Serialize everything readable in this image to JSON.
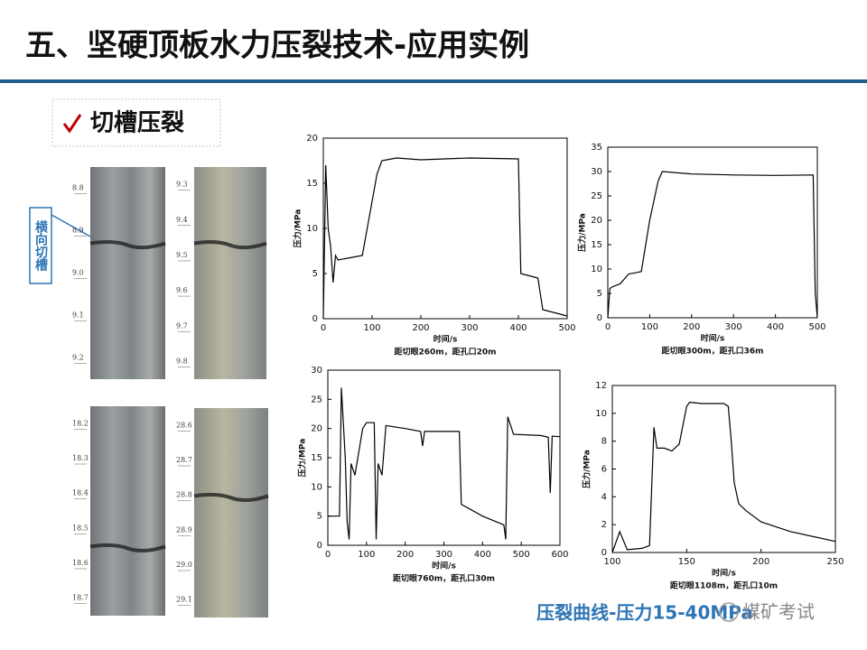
{
  "header": {
    "title": "五、坚硬顶板水力压裂技术-应用实例"
  },
  "callout": {
    "text": "切槽压裂"
  },
  "slot_label": {
    "text": "横向切槽"
  },
  "core_photos": [
    {
      "depths": [
        "8.8",
        "8.9",
        "9.0",
        "9.1",
        "9.2"
      ]
    },
    {
      "depths": [
        "9.3",
        "9.4",
        "9.5",
        "9.6",
        "9.7",
        "9.8"
      ]
    },
    {
      "depths": [
        "18.2",
        "18.3",
        "18.4",
        "18.5",
        "18.6",
        "18.7"
      ]
    },
    {
      "depths": [
        "28.6",
        "28.7",
        "28.8",
        "28.9",
        "29.0",
        "29.1"
      ]
    }
  ],
  "chart_data": [
    {
      "type": "line",
      "subtitle": "距切眼260m，距孔口20m",
      "x_label": "时间/s",
      "y_label": "压力/MPa",
      "xlim": [
        0,
        500
      ],
      "xticks": [
        0,
        100,
        200,
        300,
        400,
        500
      ],
      "ylim": [
        0,
        20
      ],
      "yticks": [
        0,
        5,
        10,
        15,
        20
      ],
      "series": [
        {
          "color": "#000000",
          "x": [
            0,
            5,
            10,
            15,
            20,
            25,
            30,
            50,
            80,
            90,
            100,
            110,
            120,
            150,
            200,
            300,
            400,
            405,
            440,
            450,
            500
          ],
          "values": [
            0,
            17,
            10,
            8,
            4,
            7,
            6.5,
            6.7,
            7,
            10,
            13,
            16,
            17.5,
            17.8,
            17.6,
            17.8,
            17.7,
            5,
            4.5,
            1,
            0.3
          ]
        }
      ]
    },
    {
      "type": "line",
      "subtitle": "距切眼300m，距孔口36m",
      "x_label": "时间/s",
      "y_label": "压力/MPa",
      "xlim": [
        0,
        500
      ],
      "xticks": [
        0,
        100,
        200,
        300,
        400,
        500
      ],
      "ylim": [
        0,
        35
      ],
      "yticks": [
        0,
        5,
        10,
        15,
        20,
        25,
        30,
        35
      ],
      "series": [
        {
          "color": "#000000",
          "x": [
            0,
            5,
            10,
            30,
            50,
            70,
            80,
            100,
            120,
            130,
            200,
            300,
            400,
            490,
            495,
            500
          ],
          "values": [
            0,
            6,
            6.3,
            7,
            9,
            9.3,
            9.5,
            20,
            28,
            30,
            29.5,
            29.3,
            29.2,
            29.3,
            5,
            0
          ]
        }
      ]
    },
    {
      "type": "line",
      "subtitle": "距切眼760m，距孔口30m",
      "x_label": "时间/s",
      "y_label": "压力/MPa",
      "xlim": [
        0,
        600
      ],
      "xticks": [
        0,
        100,
        200,
        300,
        400,
        500,
        600
      ],
      "ylim": [
        0,
        30
      ],
      "yticks": [
        0,
        5,
        10,
        15,
        20,
        25,
        30
      ],
      "series": [
        {
          "color": "#000000",
          "x": [
            0,
            30,
            35,
            45,
            50,
            55,
            60,
            70,
            90,
            100,
            120,
            125,
            130,
            140,
            150,
            200,
            240,
            245,
            250,
            340,
            345,
            400,
            455,
            460,
            465,
            480,
            550,
            570,
            575,
            580,
            600
          ],
          "values": [
            5,
            5,
            27,
            15,
            4,
            1,
            14,
            12,
            20,
            21,
            21,
            1,
            14,
            12,
            20.5,
            20,
            19.5,
            17,
            19.5,
            19.5,
            7,
            5,
            3.5,
            1,
            22,
            19,
            18.8,
            18.5,
            9,
            18.7,
            18.6
          ]
        }
      ]
    },
    {
      "type": "line",
      "subtitle": "距切眼1108m，距孔口10m",
      "x_label": "时间/s",
      "y_label": "压力/MPa",
      "xlim": [
        100,
        250
      ],
      "xticks": [
        100,
        150,
        200,
        250
      ],
      "ylim": [
        0,
        12
      ],
      "yticks": [
        0,
        2,
        4,
        6,
        8,
        10,
        12
      ],
      "series": [
        {
          "color": "#000000",
          "x": [
            100,
            105,
            110,
            120,
            125,
            128,
            130,
            135,
            140,
            145,
            150,
            152,
            160,
            175,
            178,
            180,
            182,
            185,
            190,
            200,
            220,
            250
          ],
          "values": [
            0,
            1.5,
            0.2,
            0.3,
            0.5,
            9,
            7.5,
            7.5,
            7.3,
            7.8,
            10.5,
            10.8,
            10.7,
            10.7,
            10.5,
            8,
            5,
            3.5,
            3,
            2.2,
            1.5,
            0.8
          ]
        }
      ]
    }
  ],
  "caption": {
    "text": "压裂曲线-压力15-40MPa"
  },
  "watermark": {
    "text": "煤矿考试"
  }
}
